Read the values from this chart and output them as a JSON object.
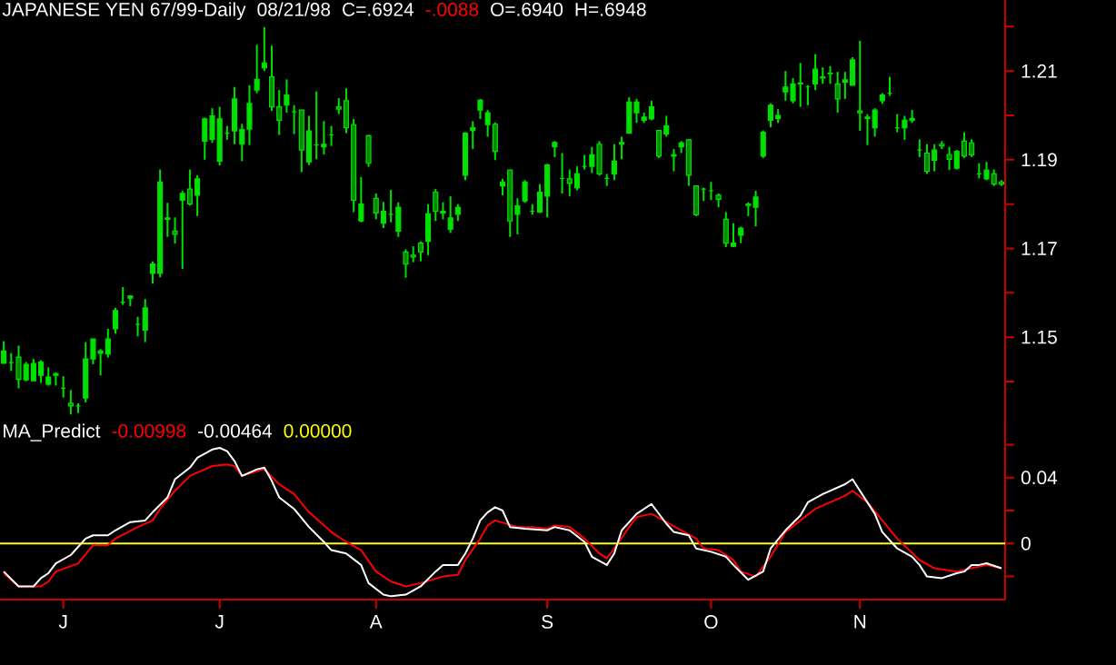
{
  "chart_data": [
    {
      "type": "candlestick",
      "title": "JAPANESE YEN 67/99-Daily",
      "annotations": [
        "08/21/98",
        "C=.6924",
        "-.0088",
        "O=.6940",
        "H=.6948"
      ],
      "color": "#00e000",
      "categories": [
        null,
        null,
        null,
        null,
        null,
        null,
        null,
        null,
        null,
        null,
        null,
        null,
        null,
        null,
        null,
        null,
        null,
        null,
        null,
        null,
        null,
        null,
        null,
        null,
        null,
        null,
        null,
        null,
        null,
        null,
        null,
        null,
        null,
        null,
        null,
        null,
        null,
        null,
        null,
        null,
        null,
        null,
        null,
        null,
        null,
        null,
        null,
        null,
        null,
        null,
        null,
        null,
        null,
        null,
        null,
        null,
        null,
        null,
        null,
        null,
        null,
        null,
        null,
        null,
        null,
        null,
        null,
        null,
        null,
        null,
        null,
        null,
        null,
        null,
        null,
        null,
        null,
        null,
        null,
        null,
        null,
        null,
        null,
        null,
        null,
        null,
        null,
        null,
        null,
        null,
        null,
        null,
        null,
        null,
        null,
        null,
        null,
        null,
        null,
        null,
        null,
        null,
        null,
        null,
        null,
        null,
        null,
        null,
        null,
        null,
        null,
        null,
        null,
        null,
        null,
        null,
        null,
        null,
        null,
        null,
        null,
        null,
        null,
        null,
        null,
        null,
        null,
        null,
        null,
        null,
        null,
        null,
        null,
        null,
        null
      ],
      "ohlc": [
        [
          1.1441,
          1.1491,
          1.1441,
          1.1469
        ],
        [
          1.1443,
          1.1464,
          1.1424,
          1.1443
        ],
        [
          1.1455,
          1.1481,
          1.1385,
          1.1405
        ],
        [
          1.1404,
          1.1444,
          1.1401,
          1.1439
        ],
        [
          1.1402,
          1.1451,
          1.1402,
          1.1441
        ],
        [
          1.1414,
          1.1448,
          1.1397,
          1.1444
        ],
        [
          1.1394,
          1.1432,
          1.1391,
          1.141
        ],
        [
          1.1414,
          1.1421,
          1.1391,
          1.1418
        ],
        [
          1.1385,
          1.1412,
          1.1364,
          1.1385
        ],
        [
          1.1351,
          1.1381,
          1.1326,
          1.1345
        ],
        [
          1.1345,
          1.1351,
          1.1329,
          1.1345
        ],
        [
          1.1363,
          1.1489,
          1.1353,
          1.1451
        ],
        [
          1.1451,
          1.1496,
          1.1439,
          1.1496
        ],
        [
          1.1464,
          1.1473,
          1.1414,
          1.1469
        ],
        [
          1.1462,
          1.1519,
          1.1454,
          1.1496
        ],
        [
          1.1519,
          1.1566,
          1.1508,
          1.156
        ],
        [
          1.1579,
          1.1613,
          1.1573,
          1.1579
        ],
        [
          1.1588,
          1.1594,
          1.157,
          1.1593
        ],
        [
          1.1529,
          1.1546,
          1.1502,
          1.1529
        ],
        [
          1.1516,
          1.1586,
          1.1489,
          1.1566
        ],
        [
          1.1644,
          1.1671,
          1.1621,
          1.1665
        ],
        [
          1.1644,
          1.1878,
          1.1635,
          1.185
        ],
        [
          1.1766,
          1.1803,
          1.1726,
          1.1769
        ],
        [
          1.1739,
          1.177,
          1.1711,
          1.1732
        ],
        [
          1.1809,
          1.183,
          1.1654,
          1.1824
        ],
        [
          1.1834,
          1.1878,
          1.1797,
          1.18
        ],
        [
          1.182,
          1.1865,
          1.1773,
          1.1857
        ],
        [
          1.1942,
          1.1995,
          1.19,
          1.1992
        ],
        [
          1.1946,
          1.2016,
          1.1938,
          1.1999
        ],
        [
          1.1897,
          1.2019,
          1.1887,
          1.1992
        ],
        [
          1.196,
          1.1976,
          1.1945,
          1.196
        ],
        [
          1.1965,
          1.2064,
          1.1935,
          1.2037
        ],
        [
          1.1935,
          1.1981,
          1.1897,
          1.1968
        ],
        [
          1.1969,
          1.2068,
          1.1933,
          1.2027
        ],
        [
          1.2057,
          1.2159,
          1.205,
          1.2081
        ],
        [
          1.2107,
          1.2199,
          1.21,
          1.2118
        ],
        [
          1.2087,
          1.2157,
          1.201,
          1.2019
        ],
        [
          1.2019,
          1.2057,
          1.1956,
          1.1989
        ],
        [
          1.2023,
          1.2081,
          1.2006,
          1.2046
        ],
        [
          1.2008,
          1.2023,
          1.1958,
          1.2008
        ],
        [
          1.2012,
          1.2012,
          1.1872,
          1.1922
        ],
        [
          1.1895,
          1.1999,
          1.1888,
          1.1965
        ],
        [
          1.1933,
          1.2054,
          1.1901,
          1.1933
        ],
        [
          1.1929,
          1.1987,
          1.1912,
          1.1935
        ],
        [
          1.1956,
          1.1976,
          1.1931,
          1.1956
        ],
        [
          1.2019,
          1.2039,
          1.2003,
          1.2014
        ],
        [
          1.2033,
          1.2061,
          1.196,
          1.1972
        ],
        [
          1.1979,
          1.1992,
          1.1782,
          1.1809
        ],
        [
          1.1762,
          1.1861,
          1.1759,
          1.18
        ],
        [
          1.1954,
          1.1956,
          1.1884,
          1.1892
        ],
        [
          1.1813,
          1.1824,
          1.1766,
          1.178
        ],
        [
          1.1757,
          1.1805,
          1.1746,
          1.1784
        ],
        [
          1.1777,
          1.1832,
          1.1759,
          1.1777
        ],
        [
          1.1739,
          1.1804,
          1.1726,
          1.1793
        ],
        [
          1.1692,
          1.1698,
          1.1634,
          1.1665
        ],
        [
          1.1685,
          1.1705,
          1.1669,
          1.1681
        ],
        [
          1.1712,
          1.1716,
          1.1671,
          1.1692
        ],
        [
          1.1716,
          1.18,
          1.1685,
          1.1778
        ],
        [
          1.1827,
          1.1834,
          1.1762,
          1.1784
        ],
        [
          1.178,
          1.1804,
          1.1766,
          1.1784
        ],
        [
          1.1743,
          1.1818,
          1.1735,
          1.1769
        ],
        [
          1.1777,
          1.18,
          1.1762,
          1.1793
        ],
        [
          1.1865,
          1.1962,
          1.1854,
          1.196
        ],
        [
          1.1966,
          1.1987,
          1.1924,
          1.1972
        ],
        [
          1.2012,
          1.2037,
          1.1992,
          1.2034
        ],
        [
          1.1979,
          1.2012,
          1.1952,
          1.2006
        ],
        [
          1.198,
          1.1984,
          1.1899,
          1.1919
        ],
        [
          1.1841,
          1.1857,
          1.182,
          1.185
        ],
        [
          1.1877,
          1.1877,
          1.1726,
          1.1762
        ],
        [
          1.1777,
          1.1813,
          1.1732,
          1.1796
        ],
        [
          1.1807,
          1.1854,
          1.1803,
          1.185
        ],
        [
          1.1784,
          1.18,
          1.1776,
          1.1784
        ],
        [
          1.1782,
          1.1845,
          1.178,
          1.1827
        ],
        [
          1.1818,
          1.1891,
          1.177,
          1.1888
        ],
        [
          1.1929,
          1.1942,
          1.1906,
          1.1939
        ],
        [
          1.1858,
          1.1915,
          1.1824,
          1.1858
        ],
        [
          1.1857,
          1.1878,
          1.1818,
          1.1847
        ],
        [
          1.1837,
          1.1885,
          1.1831,
          1.1868
        ],
        [
          1.1885,
          1.1911,
          1.1878,
          1.1885
        ],
        [
          1.1885,
          1.1929,
          1.187,
          1.1911
        ],
        [
          1.1935,
          1.1942,
          1.1864,
          1.1868
        ],
        [
          1.1858,
          1.1868,
          1.1841,
          1.1858
        ],
        [
          1.1868,
          1.1935,
          1.1854,
          1.1897
        ],
        [
          1.1935,
          1.1952,
          1.1901,
          1.1939
        ],
        [
          1.196,
          1.2041,
          1.196,
          1.203
        ],
        [
          1.2006,
          1.2037,
          1.1983,
          1.203
        ],
        [
          1.1989,
          1.2006,
          1.1983,
          1.1996
        ],
        [
          1.1992,
          1.2033,
          1.1989,
          1.2019
        ],
        [
          1.1966,
          1.1966,
          1.1904,
          1.1908
        ],
        [
          1.1958,
          1.1999,
          1.1952,
          1.1976
        ],
        [
          1.1908,
          1.1924,
          1.1874,
          1.1911
        ],
        [
          1.1929,
          1.1942,
          1.1915,
          1.1938
        ],
        [
          1.1945,
          1.1946,
          1.1841,
          1.1865
        ],
        [
          1.1841,
          1.1841,
          1.1773,
          1.1776
        ],
        [
          1.1834,
          1.1837,
          1.1807,
          1.1834
        ],
        [
          1.183,
          1.185,
          1.1809,
          1.183
        ],
        [
          1.182,
          1.1824,
          1.1793,
          1.1811
        ],
        [
          1.1766,
          1.1782,
          1.1703,
          1.1712
        ],
        [
          1.1705,
          1.1757,
          1.1703,
          1.1712
        ],
        [
          1.173,
          1.1749,
          1.1712,
          1.1746
        ],
        [
          1.18,
          1.1804,
          1.1773,
          1.1797
        ],
        [
          1.1793,
          1.183,
          1.175,
          1.1816
        ],
        [
          1.1908,
          1.1966,
          1.1904,
          1.1962
        ],
        [
          1.1989,
          1.2027,
          1.1973,
          1.2023
        ],
        [
          1.1993,
          1.2014,
          1.1983,
          1.2
        ],
        [
          1.2053,
          1.21,
          1.2033,
          1.2064
        ],
        [
          1.2033,
          1.2084,
          1.2027,
          1.2071
        ],
        [
          1.2071,
          1.2118,
          1.2019,
          1.2073
        ],
        [
          1.2064,
          1.2068,
          1.2023,
          1.2064
        ],
        [
          1.2071,
          1.2138,
          1.2057,
          1.2104
        ],
        [
          1.2087,
          1.2108,
          1.2071,
          1.2084
        ],
        [
          1.2094,
          1.2111,
          1.2071,
          1.2095
        ],
        [
          1.2071,
          1.2098,
          1.2006,
          1.2037
        ],
        [
          1.2075,
          1.2098,
          1.2037,
          1.208
        ],
        [
          1.2068,
          1.2131,
          1.2068,
          1.2125
        ],
        [
          1.201,
          1.2168,
          1.1965,
          1.2006
        ],
        [
          1.1993,
          1.2003,
          1.1933,
          1.1996
        ],
        [
          1.1972,
          1.2016,
          1.1952,
          1.2012
        ],
        [
          1.2033,
          1.205,
          1.2026,
          1.2046
        ],
        [
          1.205,
          1.2087,
          1.2044,
          1.205
        ],
        [
          1.1972,
          1.2003,
          1.1962,
          1.1972
        ],
        [
          1.1972,
          1.1999,
          1.1945,
          1.1989
        ],
        [
          1.1989,
          1.2012,
          1.1983,
          1.1993
        ],
        [
          1.1922,
          1.1946,
          1.1906,
          1.1922
        ],
        [
          1.1915,
          1.1935,
          1.1868,
          1.1874
        ],
        [
          1.1899,
          1.1935,
          1.1874,
          1.1922
        ],
        [
          1.1935,
          1.1942,
          1.1924,
          1.1931
        ],
        [
          1.1912,
          1.1929,
          1.1877,
          1.1901
        ],
        [
          1.1881,
          1.1922,
          1.1878,
          1.1919
        ],
        [
          1.1942,
          1.1962,
          1.1904,
          1.1908
        ],
        [
          1.1938,
          1.1946,
          1.1906,
          1.1911
        ],
        [
          1.1868,
          1.1892,
          1.1858,
          1.1868
        ],
        [
          1.1857,
          1.1895,
          1.1854,
          1.1877
        ],
        [
          1.1868,
          1.1878,
          1.1841,
          1.1845
        ],
        [
          1.185,
          1.1854,
          1.1841,
          1.1845
        ]
      ],
      "ylim": [
        1.131,
        1.226
      ],
      "yticks": [
        {
          "value": 1.14,
          "label": null
        },
        1.15,
        {
          "value": 1.16,
          "label": null
        },
        1.17,
        {
          "value": 1.18,
          "label": null
        },
        1.19,
        {
          "value": 1.2,
          "label": null
        },
        1.21,
        {
          "value": 1.22,
          "label": null
        }
      ],
      "tick_labels": "y"
    },
    {
      "type": "line",
      "title": "MA_Predict",
      "categories": [
        null,
        null,
        null,
        null,
        null,
        null,
        null,
        null,
        "J",
        null,
        null,
        null,
        null,
        null,
        null,
        null,
        null,
        null,
        null,
        null,
        null,
        null,
        null,
        null,
        null,
        null,
        null,
        null,
        null,
        "J",
        null,
        null,
        null,
        null,
        null,
        null,
        null,
        null,
        null,
        null,
        null,
        null,
        null,
        null,
        null,
        null,
        null,
        null,
        null,
        null,
        "A",
        null,
        null,
        null,
        null,
        null,
        null,
        null,
        null,
        null,
        null,
        null,
        null,
        null,
        null,
        null,
        null,
        null,
        null,
        null,
        null,
        null,
        null,
        "S",
        null,
        null,
        null,
        null,
        null,
        null,
        null,
        null,
        null,
        null,
        null,
        null,
        null,
        null,
        null,
        null,
        null,
        null,
        null,
        null,
        null,
        "O",
        null,
        null,
        null,
        null,
        null,
        null,
        null,
        null,
        null,
        null,
        null,
        null,
        null,
        null,
        null,
        null,
        null,
        null,
        null,
        "N",
        null,
        null,
        null,
        null,
        null,
        null,
        null,
        null,
        null,
        null,
        null,
        null,
        null,
        null,
        null,
        null,
        null,
        null,
        null
      ],
      "series": [
        {
          "name": "-0.00998",
          "color": "#ff0000",
          "values": [
            -0.018,
            null,
            -0.026,
            null,
            null,
            -0.026,
            -0.023,
            -0.017,
            null,
            null,
            -0.012,
            null,
            -0.001,
            null,
            -0.001,
            0.003,
            null,
            null,
            0.01,
            null,
            0.014,
            0.021,
            null,
            0.032,
            null,
            0.041,
            null,
            null,
            0.047,
            null,
            0.048,
            0.047,
            0.041,
            null,
            0.044,
            0.045,
            null,
            0.036,
            null,
            0.03,
            null,
            0.019,
            null,
            null,
            0.007,
            null,
            0.001,
            null,
            -0.004,
            null,
            -0.017,
            null,
            -0.023,
            null,
            -0.026,
            null,
            -0.024,
            null,
            null,
            -0.02,
            null,
            -0.019,
            -0.01,
            null,
            0.003,
            0.011,
            0.014,
            null,
            null,
            0.01,
            null,
            0.01,
            null,
            0.009,
            0.011,
            null,
            0.01,
            null,
            0.003,
            null,
            -0.006,
            -0.009,
            -0.003,
            null,
            0.01,
            0.016,
            null,
            0.018,
            null,
            0.013,
            null,
            0.008,
            null,
            0.003,
            -0.003,
            null,
            -0.004,
            null,
            -0.01,
            -0.017,
            null,
            -0.02,
            null,
            -0.008,
            null,
            0.007,
            null,
            0.014,
            null,
            0.021,
            null,
            0.025,
            null,
            0.029,
            0.032,
            null,
            0.025,
            null,
            0.014,
            null,
            0.003,
            null,
            null,
            -0.01,
            null,
            -0.015,
            null,
            null,
            -0.017,
            null,
            -0.015,
            null,
            -0.013,
            null,
            -0.015
          ]
        },
        {
          "name": "-0.00464",
          "color": "#ffffff",
          "values": [
            -0.017,
            null,
            -0.026,
            null,
            -0.026,
            -0.021,
            -0.018,
            -0.012,
            null,
            -0.007,
            null,
            0.003,
            0.005,
            null,
            0.005,
            0.008,
            null,
            0.013,
            null,
            0.014,
            0.019,
            null,
            0.028,
            0.039,
            null,
            0.046,
            0.052,
            null,
            0.057,
            0.058,
            0.056,
            0.05,
            0.041,
            null,
            0.045,
            0.046,
            0.038,
            0.028,
            null,
            0.021,
            null,
            0.01,
            null,
            0.001,
            -0.004,
            null,
            -0.006,
            null,
            -0.013,
            -0.024,
            null,
            -0.031,
            -0.032,
            null,
            -0.031,
            null,
            -0.026,
            null,
            -0.017,
            -0.013,
            null,
            -0.013,
            -0.006,
            0.003,
            0.014,
            0.019,
            0.022,
            0.02,
            0.01,
            null,
            0.009,
            null,
            null,
            0.008,
            0.01,
            null,
            0.008,
            null,
            0.001,
            -0.008,
            null,
            -0.013,
            -0.006,
            0.008,
            null,
            0.018,
            null,
            0.024,
            null,
            0.012,
            0.007,
            null,
            0.005,
            -0.003,
            null,
            -0.005,
            null,
            -0.008,
            -0.013,
            null,
            -0.022,
            null,
            -0.017,
            -0.003,
            null,
            0.008,
            null,
            0.017,
            0.025,
            null,
            0.03,
            null,
            null,
            0.036,
            0.039,
            0.032,
            null,
            0.018,
            0.007,
            null,
            -0.003,
            null,
            -0.008,
            -0.013,
            -0.02,
            null,
            -0.021,
            null,
            -0.018,
            -0.017,
            -0.013,
            -0.013,
            -0.012,
            null,
            -0.015
          ]
        }
      ],
      "ref_lines": [
        {
          "axis": "y",
          "value": 0,
          "label": "0.00000",
          "color": "#ffff00"
        }
      ],
      "ylim": [
        -0.034,
        0.074
      ],
      "yticks": [
        {
          "value": -0.02,
          "label": null
        },
        0,
        {
          "value": 0.02,
          "label": null
        },
        0.04,
        {
          "value": 0.06,
          "label": null
        }
      ]
    }
  ]
}
